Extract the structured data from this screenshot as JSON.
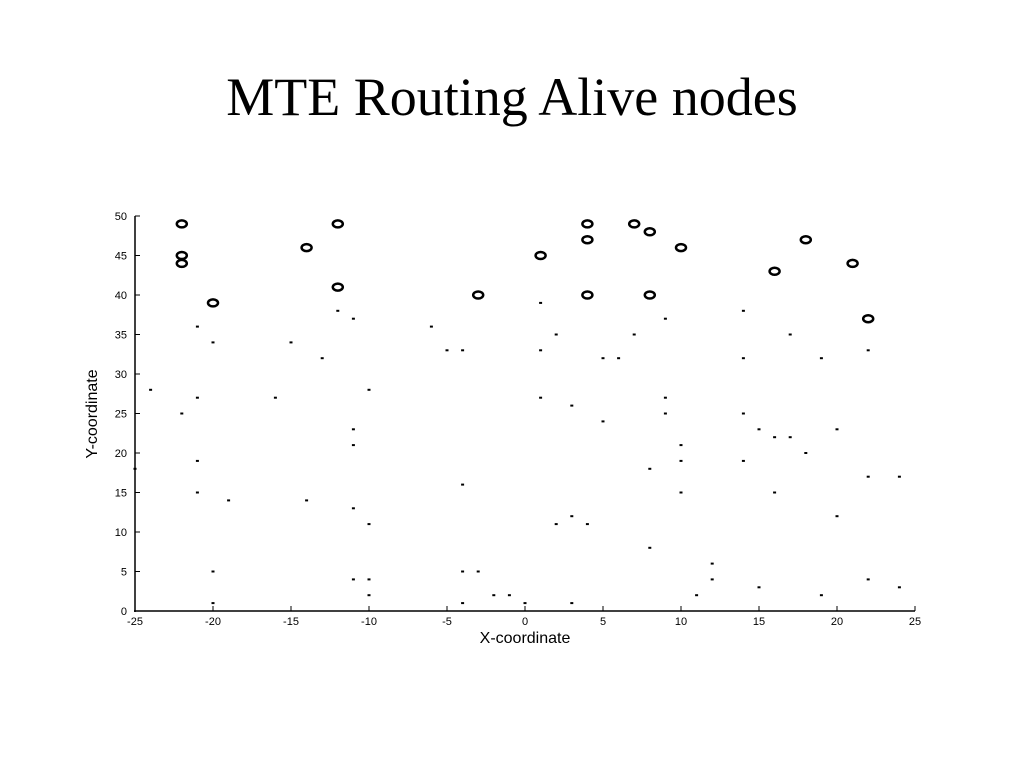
{
  "chart_data": {
    "type": "scatter",
    "title": "MTE Routing Alive nodes",
    "xlabel": "X-coordinate",
    "ylabel": "Y-coordinate",
    "xlim": [
      -25,
      25
    ],
    "ylim": [
      0,
      50
    ],
    "xticks": [
      -25,
      -20,
      -15,
      -10,
      -5,
      0,
      5,
      10,
      15,
      20,
      25
    ],
    "yticks": [
      0,
      5,
      10,
      15,
      20,
      25,
      30,
      35,
      40,
      45,
      50
    ],
    "grid": false,
    "series": [
      {
        "marker": "circle",
        "color": "#000000",
        "x": [
          -22,
          -22,
          -22,
          -20,
          -14,
          -12,
          -12,
          -3,
          1,
          4,
          4,
          4,
          7,
          8,
          8,
          10,
          16,
          18,
          21,
          22
        ],
        "values": [
          49,
          45,
          44,
          39,
          46,
          49,
          41,
          40,
          45,
          49,
          47,
          40,
          49,
          48,
          40,
          46,
          43,
          47,
          44,
          37
        ]
      },
      {
        "marker": "dot",
        "color": "#000000",
        "x": [
          -24,
          -25,
          -21,
          -22,
          -21,
          -21,
          -21,
          -20,
          -20,
          -20,
          -19,
          -16,
          -15,
          -14,
          -13,
          -12,
          -11,
          -11,
          -11,
          -11,
          -11,
          -10,
          -10,
          -10,
          -10,
          -6,
          -5,
          -4,
          -4,
          -4,
          -4,
          -3,
          -2,
          -1,
          0,
          1,
          1,
          1,
          2,
          2,
          3,
          3,
          3,
          4,
          5,
          5,
          6,
          7,
          8,
          8,
          9,
          9,
          9,
          10,
          10,
          10,
          11,
          12,
          12,
          14,
          14,
          14,
          14,
          15,
          15,
          16,
          16,
          17,
          17,
          18,
          19,
          19,
          20,
          20,
          22,
          22,
          22,
          24,
          24
        ],
        "values": [
          28,
          18,
          36,
          25,
          27,
          19,
          15,
          34,
          5,
          1,
          14,
          27,
          34,
          14,
          32,
          38,
          37,
          23,
          21,
          13,
          4,
          28,
          11,
          4,
          2,
          36,
          33,
          33,
          16,
          5,
          1,
          5,
          2,
          2,
          1,
          39,
          33,
          27,
          35,
          11,
          26,
          12,
          1,
          11,
          32,
          24,
          32,
          35,
          18,
          8,
          37,
          27,
          25,
          21,
          19,
          15,
          2,
          6,
          4,
          38,
          32,
          25,
          19,
          23,
          3,
          22,
          15,
          35,
          22,
          20,
          32,
          2,
          23,
          12,
          33,
          17,
          4,
          17,
          3
        ]
      }
    ]
  }
}
